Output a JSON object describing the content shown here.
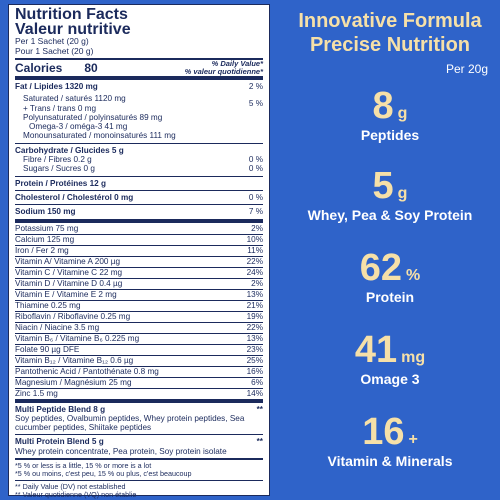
{
  "panel": {
    "title_en": "Nutrition Facts",
    "title_fr": "Valeur nutritive",
    "serving_en": "Per 1 Sachet (20 g)",
    "serving_fr": "Pour 1 Sachet (20 g)",
    "calories_label": "Calories",
    "calories_value": "80",
    "dv_header_en": "% Daily Value*",
    "dv_header_fr": "% valeur quotidienne*",
    "fat_label": "Fat / Lipides 1320 mg",
    "fat_dv": "2 %",
    "saturated": "Saturated / saturés 1120 mg",
    "trans": "+ Trans / trans 0 mg",
    "sat_trans_dv": "5 %",
    "poly": "Polyunsaturated / polyinsaturés 89 mg",
    "omega3": "Omega-3 / oméga-3 41 mg",
    "mono": "Monounsaturated / monoinsaturés 111 mg",
    "carb_label": "Carbohydrate / Glucides 5 g",
    "fibre": "Fibre / Fibres 0.2 g",
    "fibre_dv": "0 %",
    "sugars": "Sugars / Sucres 0 g",
    "sugars_dv": "0 %",
    "protein": "Protein / Protéines 12 g",
    "cholesterol": "Cholesterol / Cholestérol 0 mg",
    "cholesterol_dv": "0 %",
    "sodium": "Sodium 150 mg",
    "sodium_dv": "7 %",
    "vitamins": [
      {
        "name": "Potassium 75 mg",
        "dv": "2%"
      },
      {
        "name": "Calcium 125 mg",
        "dv": "10%"
      },
      {
        "name": "Iron / Fer 2 mg",
        "dv": "11%"
      },
      {
        "name": "Vitamin A/ Vitamine A 200 µg",
        "dv": "22%"
      },
      {
        "name": "Vitamin C / Vitamine C 22 mg",
        "dv": "24%"
      },
      {
        "name": "Vitamin D / Vitamine D 0.4 µg",
        "dv": "2%"
      },
      {
        "name": "Vitamin E / Vitamine E 2 mg",
        "dv": "13%"
      },
      {
        "name": "Thiamine 0.25 mg",
        "dv": "21%"
      },
      {
        "name": "Riboflavin / Riboflavine 0.25 mg",
        "dv": "19%"
      },
      {
        "name": "Niacin / Niacine 3.5 mg",
        "dv": "22%"
      },
      {
        "name": "Vitamin B₆ / Vitamine B₆ 0.225 mg",
        "dv": "13%"
      },
      {
        "name": "Folate 90 µg DFE",
        "dv": "23%"
      },
      {
        "name": "Vitamin B₁₂ / Vitamine B₁₂ 0.6 µg",
        "dv": "25%"
      },
      {
        "name": "Pantothenic Acid / Pantothénate 0.8 mg",
        "dv": "16%"
      },
      {
        "name": "Magnesium / Magnésium 25 mg",
        "dv": "6%"
      },
      {
        "name": "Zinc 1.5 mg",
        "dv": "14%"
      }
    ],
    "peptide_blend": "Multi Peptide Blend 8 g",
    "peptide_mark": "**",
    "peptide_list": "Soy peptides, Ovalbumin peptides, Whey protein peptides, Sea cucumber peptides, Shiitake peptides",
    "protein_blend": "Multi Protein Blend 5 g",
    "protein_mark": "**",
    "protein_list": "Whey protein concentrate, Pea protein, Soy protein isolate",
    "foot1": "*5 % or less is a little, 15 % or more is a lot",
    "foot2": "*5 % ou moins, c'est peu, 15 % ou plus, c'est beaucoup",
    "foot3": "** Daily Value (DV) not established",
    "foot4": "** Valeur quotidienne (VQ) non établie"
  },
  "right": {
    "heading1": "Innovative Formula",
    "heading2": "Precise Nutrition",
    "per": "Per 20g",
    "stats": [
      {
        "value": "8",
        "unit": "g",
        "label": "Peptides"
      },
      {
        "value": "5",
        "unit": "g",
        "label": "Whey, Pea & Soy Protein"
      },
      {
        "value": "62",
        "unit": "%",
        "label": "Protein"
      },
      {
        "value": "41",
        "unit": "mg",
        "label": "Omage 3"
      },
      {
        "value": "16",
        "unit": "+",
        "label": "Vitamin & Minerals"
      }
    ]
  },
  "colors": {
    "background": "#2f63c9",
    "accent": "#f6e0a8",
    "ink": "#1b2a5c"
  }
}
